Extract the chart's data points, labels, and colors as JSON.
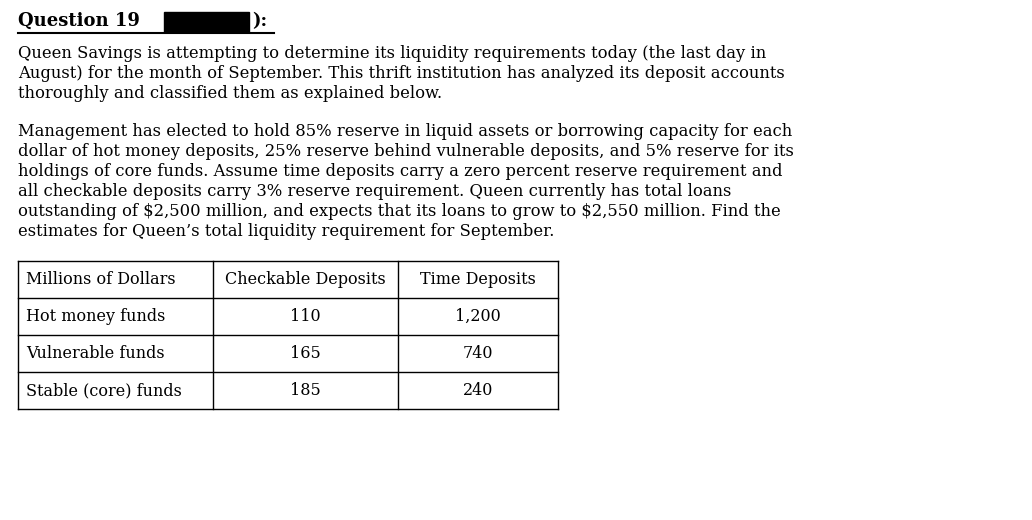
{
  "paragraph1_lines": [
    "Queen Savings is attempting to determine its liquidity requirements today (the last day in",
    "August) for the month of September. This thrift institution has analyzed its deposit accounts",
    "thoroughly and classified them as explained below."
  ],
  "paragraph2_lines": [
    "Management has elected to hold 85% reserve in liquid assets or borrowing capacity for each",
    "dollar of hot money deposits, 25% reserve behind vulnerable deposits, and 5% reserve for its",
    "holdings of core funds. Assume time deposits carry a zero percent reserve requirement and",
    "all checkable deposits carry 3% reserve requirement. Queen currently has total loans",
    "outstanding of $2,500 million, and expects that its loans to grow to $2,550 million. Find the",
    "estimates for Queen’s total liquidity requirement for September."
  ],
  "table_headers": [
    "Millions of Dollars",
    "Checkable Deposits",
    "Time Deposits"
  ],
  "table_rows": [
    [
      "Hot money funds",
      "110",
      "1,200"
    ],
    [
      "Vulnerable funds",
      "165",
      "740"
    ],
    [
      "Stable (core) funds",
      "185",
      "240"
    ]
  ],
  "bg_color": "#ffffff",
  "text_color": "#000000",
  "font_size_title": 13,
  "font_size_body": 11.8,
  "font_size_table": 11.5
}
